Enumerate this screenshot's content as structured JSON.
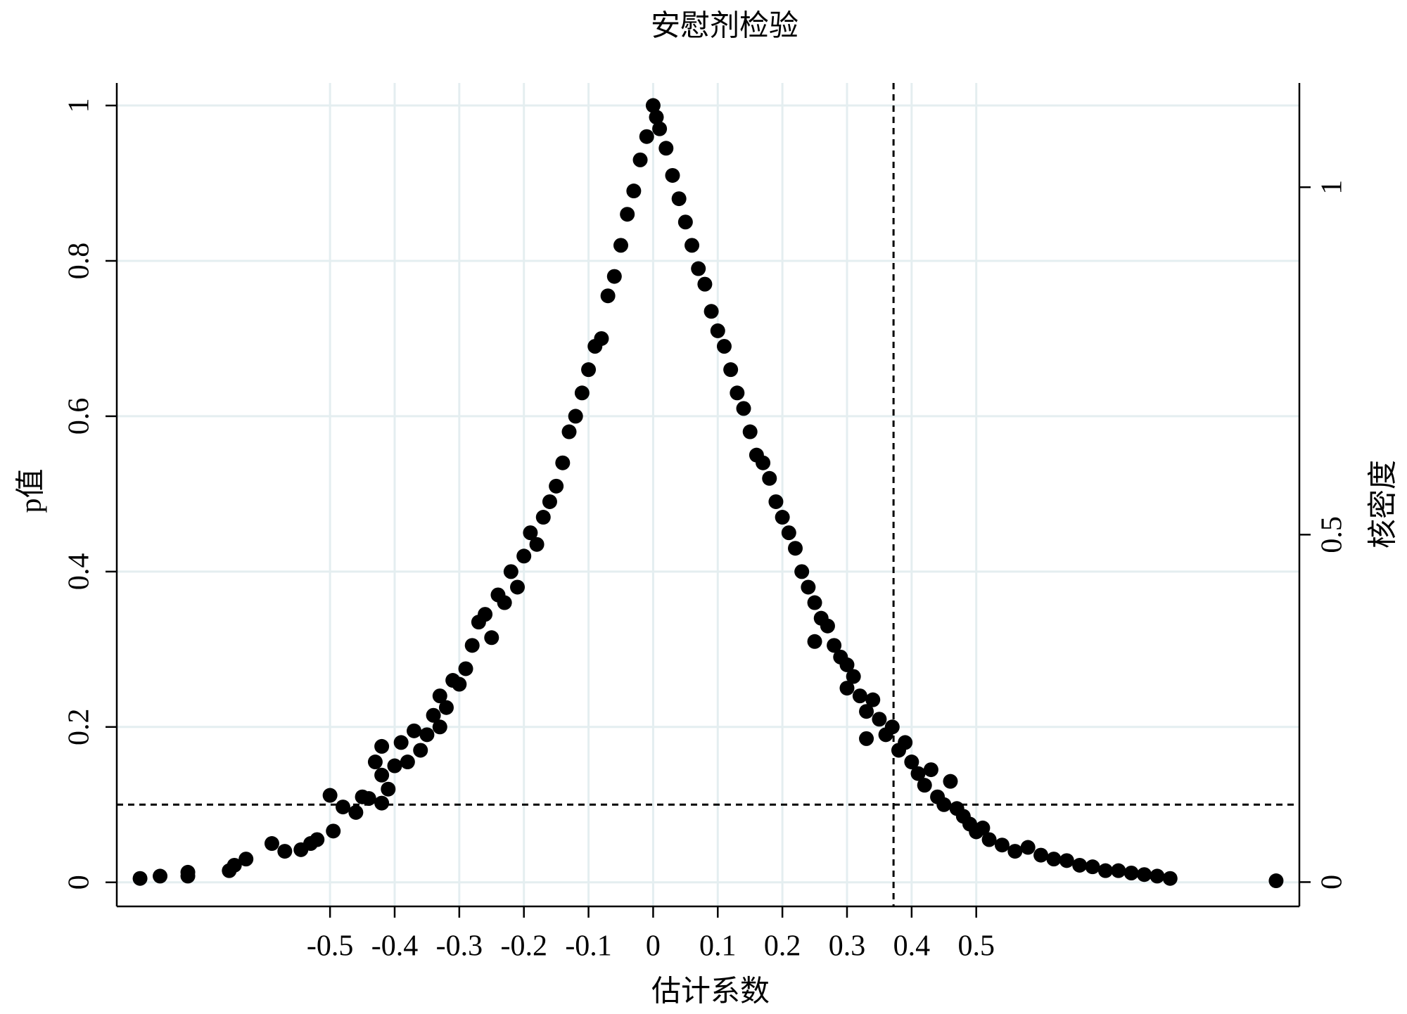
{
  "chart_data": {
    "type": "scatter",
    "title": "安慰剂检验",
    "xlabel": "估计系数",
    "ylabel": "p值",
    "y2label": "核密度",
    "color": "#000000",
    "grid": true,
    "xlim": [
      -0.83,
      1.0
    ],
    "ylim": [
      -0.031,
      1.029
    ],
    "y2lim": [
      -0.035,
      1.15
    ],
    "xticks": [
      -0.5,
      -0.4,
      -0.3,
      -0.2,
      -0.1,
      0,
      0.1,
      0.2,
      0.3,
      0.4,
      0.5
    ],
    "yticks": [
      0,
      0.2,
      0.4,
      0.6,
      0.8,
      1
    ],
    "y2ticks": [
      0,
      0.5,
      1
    ],
    "hline": 0.1,
    "vline": 0.372,
    "x": [
      -0.794,
      -0.763,
      -0.72,
      -0.72,
      -0.656,
      -0.648,
      -0.63,
      -0.59,
      -0.57,
      -0.545,
      -0.53,
      -0.52,
      -0.5,
      -0.495,
      -0.48,
      -0.46,
      -0.45,
      -0.44,
      -0.43,
      -0.42,
      -0.42,
      -0.41,
      -0.42,
      -0.4,
      -0.39,
      -0.38,
      -0.37,
      -0.36,
      -0.35,
      -0.34,
      -0.33,
      -0.33,
      -0.32,
      -0.31,
      -0.3,
      -0.29,
      -0.28,
      -0.27,
      -0.26,
      -0.25,
      -0.24,
      -0.23,
      -0.22,
      -0.21,
      -0.2,
      -0.19,
      -0.18,
      -0.17,
      -0.16,
      -0.15,
      -0.14,
      -0.13,
      -0.12,
      -0.11,
      -0.1,
      -0.09,
      -0.08,
      -0.07,
      -0.06,
      -0.05,
      -0.04,
      -0.03,
      -0.02,
      -0.01,
      0,
      0.005,
      0.01,
      0.02,
      0.03,
      0.04,
      0.05,
      0.06,
      0.07,
      0.08,
      0.09,
      0.1,
      0.11,
      0.12,
      0.13,
      0.14,
      0.15,
      0.16,
      0.17,
      0.18,
      0.19,
      0.2,
      0.21,
      0.22,
      0.23,
      0.24,
      0.25,
      0.25,
      0.26,
      0.27,
      0.28,
      0.29,
      0.3,
      0.3,
      0.31,
      0.32,
      0.33,
      0.33,
      0.34,
      0.35,
      0.36,
      0.37,
      0.38,
      0.39,
      0.4,
      0.41,
      0.42,
      0.43,
      0.44,
      0.45,
      0.46,
      0.47,
      0.48,
      0.49,
      0.5,
      0.51,
      0.52,
      0.54,
      0.56,
      0.58,
      0.6,
      0.62,
      0.64,
      0.66,
      0.68,
      0.7,
      0.72,
      0.74,
      0.76,
      0.78,
      0.8,
      0.964
    ],
    "values": [
      0.005,
      0.008,
      0.013,
      0.008,
      0.015,
      0.022,
      0.03,
      0.05,
      0.04,
      0.042,
      0.05,
      0.055,
      0.112,
      0.066,
      0.097,
      0.09,
      0.11,
      0.108,
      0.155,
      0.175,
      0.138,
      0.12,
      0.102,
      0.15,
      0.18,
      0.155,
      0.195,
      0.17,
      0.19,
      0.215,
      0.24,
      0.2,
      0.225,
      0.26,
      0.255,
      0.275,
      0.305,
      0.335,
      0.345,
      0.315,
      0.37,
      0.36,
      0.4,
      0.38,
      0.42,
      0.45,
      0.435,
      0.47,
      0.49,
      0.51,
      0.54,
      0.58,
      0.6,
      0.63,
      0.66,
      0.69,
      0.7,
      0.755,
      0.78,
      0.82,
      0.86,
      0.89,
      0.93,
      0.96,
      1.0,
      0.985,
      0.97,
      0.945,
      0.91,
      0.88,
      0.85,
      0.82,
      0.79,
      0.77,
      0.735,
      0.71,
      0.69,
      0.66,
      0.63,
      0.61,
      0.58,
      0.55,
      0.54,
      0.52,
      0.49,
      0.47,
      0.45,
      0.43,
      0.4,
      0.38,
      0.36,
      0.31,
      0.34,
      0.33,
      0.305,
      0.29,
      0.28,
      0.25,
      0.265,
      0.24,
      0.22,
      0.185,
      0.235,
      0.21,
      0.19,
      0.2,
      0.17,
      0.18,
      0.155,
      0.14,
      0.125,
      0.145,
      0.11,
      0.1,
      0.13,
      0.095,
      0.085,
      0.075,
      0.065,
      0.07,
      0.055,
      0.048,
      0.04,
      0.045,
      0.035,
      0.03,
      0.028,
      0.022,
      0.02,
      0.015,
      0.015,
      0.012,
      0.01,
      0.008,
      0.005,
      0.002
    ]
  }
}
